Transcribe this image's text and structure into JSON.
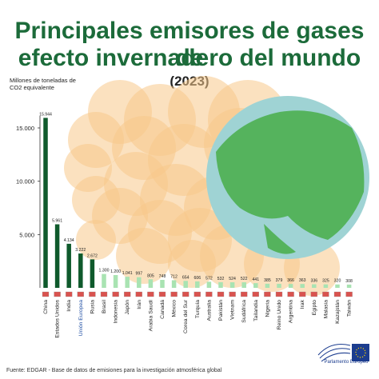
{
  "header": {
    "title_line1": "Principales emisores de gases de",
    "title_line2": "efecto invernadero del mundo",
    "year": "(2023)"
  },
  "unit_label": "Millones de toneladas de CO2 equivalente",
  "footer": {
    "source": "Fuente: EDGAR - Base de datos de emisiones para la investigación atmosférica global",
    "logo_text": "Parlamento Europeo"
  },
  "colors": {
    "title": "#1c6b3a",
    "bar_dark": "#0f5a2c",
    "bar_light": "#a9e3b2",
    "smoke": "#f7c98a",
    "ocean": "#9fd3d4",
    "land": "#4caf50",
    "eu_label": "#1f4ea3"
  },
  "chart_data": {
    "type": "bar",
    "title": "Principales emisores de gases de efecto invernadero del mundo (2023)",
    "ylabel": "Millones de toneladas de CO2 equivalente",
    "ylim": [
      0,
      16500
    ],
    "yticks": [
      5000,
      10000,
      15000
    ],
    "ytick_labels": [
      "5.000",
      "10.000",
      "15.000"
    ],
    "grid": false,
    "categories": [
      "China",
      "Estados Unidos",
      "India",
      "Unión Europea",
      "Rusia",
      "Brasil",
      "Indonesia",
      "Japón",
      "Irán",
      "Arabia Saudí",
      "Canadá",
      "México",
      "Corea del Sur",
      "Turquía",
      "Australia",
      "Pakistán",
      "Vietnam",
      "Sudáfrica",
      "Tailandia",
      "Nigeria",
      "Reino Unido",
      "Argentina",
      "Irak",
      "Egipto",
      "Malasia",
      "Kazajstán",
      "Taiwán"
    ],
    "values": [
      15944,
      5961,
      4134,
      3222,
      2672,
      1300,
      1200,
      1041,
      997,
      805,
      748,
      712,
      654,
      606,
      572,
      532,
      524,
      522,
      441,
      385,
      379,
      366,
      363,
      336,
      325,
      320,
      308
    ],
    "value_labels": [
      "15.944",
      "5.961",
      "4.134",
      "3.222",
      "2.672",
      "1.300",
      "1.200",
      "1.041",
      "997",
      "805",
      "748",
      "712",
      "654",
      "606",
      "572",
      "532",
      "524",
      "522",
      "441",
      "385",
      "379",
      "366",
      "363",
      "336",
      "325",
      "320",
      "308"
    ],
    "highlight_category": "Unión Europea"
  }
}
